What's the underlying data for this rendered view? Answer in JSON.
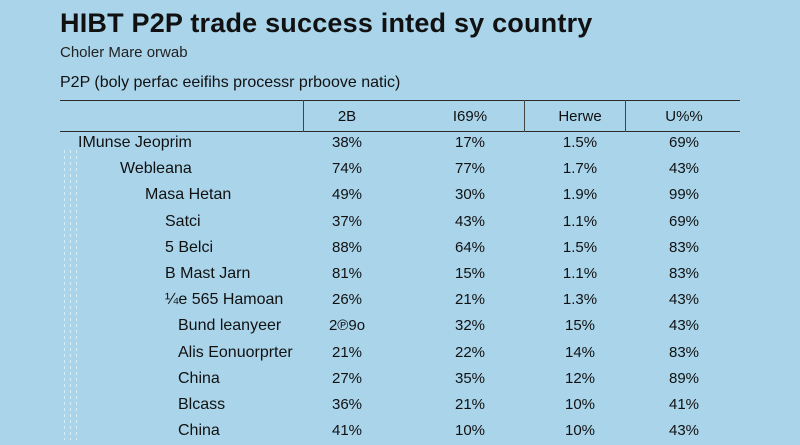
{
  "title": "HIBT P2P trade success inted sy country",
  "subtitle": "Choler Mare orwab",
  "caption": "P2P (boly perfac eeifihs processr prboove natic)",
  "chart_data": {
    "type": "table",
    "columns": [
      "2B",
      "I69%",
      "Herwe",
      "U%%"
    ],
    "rows": [
      {
        "label": "IMunse Jeoprim",
        "values": [
          "38%",
          "17%",
          "1.5%",
          "69%"
        ]
      },
      {
        "label": "Webleana",
        "values": [
          "74%",
          "77%",
          "1.7%",
          "43%"
        ]
      },
      {
        "label": "Masa Hetan",
        "values": [
          "49%",
          "30%",
          "1.9%",
          "99%"
        ]
      },
      {
        "label": "Satci",
        "values": [
          "37%",
          "43%",
          "1.1%",
          "69%"
        ]
      },
      {
        "label": "5 Belci",
        "values": [
          "88%",
          "64%",
          "1.5%",
          "83%"
        ]
      },
      {
        "label": "B Mast Jarn",
        "values": [
          "81%",
          "15%",
          "1.1%",
          "83%"
        ]
      },
      {
        "label": "¼e 565 Hamoan",
        "values": [
          "26%",
          "21%",
          "1.3%",
          "43%"
        ]
      },
      {
        "label": "Bund leanyeer",
        "values": [
          "2℗9o",
          "32%",
          "15%",
          "43%"
        ]
      },
      {
        "label": "Alis Eonuorprter",
        "values": [
          "21%",
          "22%",
          "14%",
          "83%"
        ]
      },
      {
        "label": "China",
        "values": [
          "27%",
          "35%",
          "12%",
          "89%"
        ]
      },
      {
        "label": "Blcass",
        "values": [
          "36%",
          "21%",
          "10%",
          "41%"
        ]
      },
      {
        "label": "China",
        "values": [
          "41%",
          "10%",
          "10%",
          "43%"
        ]
      }
    ]
  }
}
